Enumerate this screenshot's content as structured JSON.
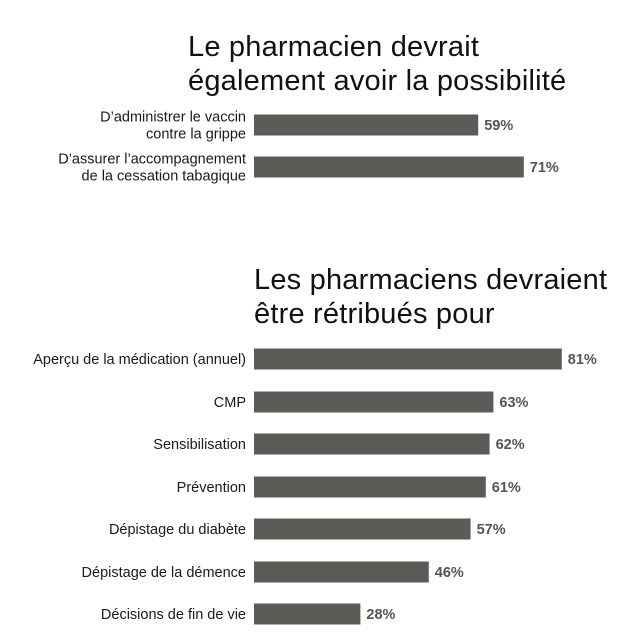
{
  "chart_data": [
    {
      "type": "bar",
      "orientation": "horizontal",
      "title_lines": [
        "Le pharmacien devrait",
        "également avoir la possibilité"
      ],
      "categories": [
        [
          "D’administrer le vaccin",
          "contre la grippe"
        ],
        [
          "D’assurer l’accompagnement",
          "de la cessation tabagique"
        ]
      ],
      "values": [
        59,
        71
      ],
      "value_labels": [
        "59%",
        "71%"
      ],
      "unit": "%",
      "xlim": [
        0,
        100
      ],
      "bar_color": "#5a5d57"
    },
    {
      "type": "bar",
      "orientation": "horizontal",
      "title_lines": [
        "Les pharmaciens devraient",
        "être rétribués pour"
      ],
      "categories": [
        [
          "Aperçu de la médication (annuel)"
        ],
        [
          "CMP"
        ],
        [
          "Sensibilisation"
        ],
        [
          "Prévention"
        ],
        [
          "Dépistage du diabète"
        ],
        [
          "Dépistage de la démence"
        ],
        [
          "Décisions de fin de vie"
        ]
      ],
      "values": [
        81,
        63,
        62,
        61,
        57,
        46,
        28
      ],
      "value_labels": [
        "81%",
        "63%",
        "62%",
        "61%",
        "57%",
        "46%",
        "28%"
      ],
      "unit": "%",
      "xlim": [
        0,
        100
      ],
      "bar_color": "#5a5d57"
    }
  ]
}
